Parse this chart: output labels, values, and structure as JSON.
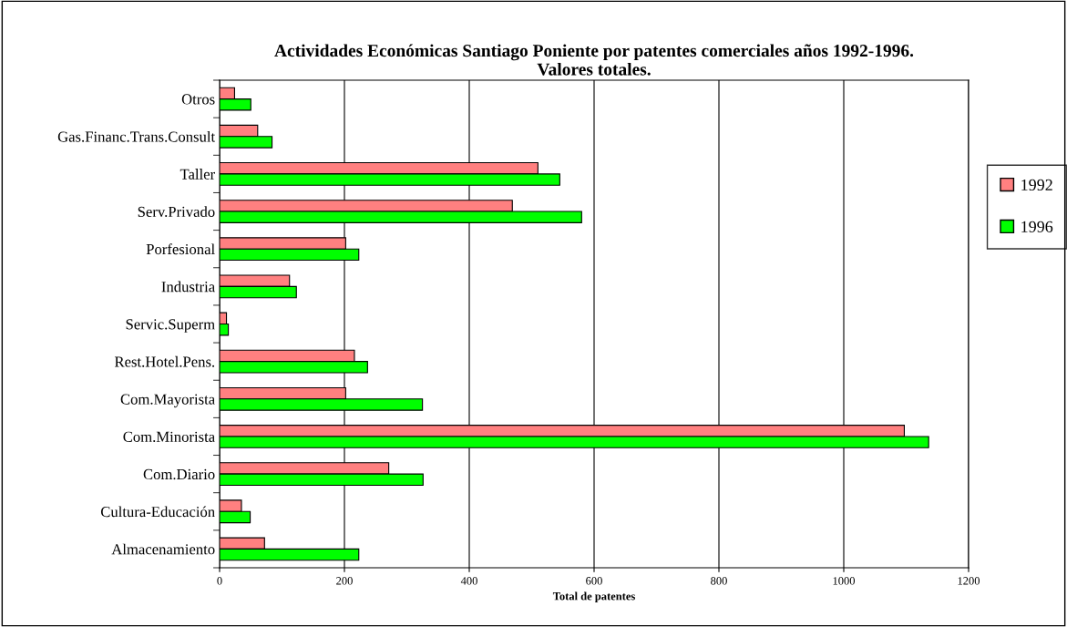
{
  "chart_data": {
    "type": "bar",
    "orientation": "horizontal",
    "title": "Actividades Económicas Santiago Poniente por patentes comerciales años 1992-1996.\nValores totales.",
    "xlabel": "Total de patentes",
    "categories": [
      "Otros",
      "Gas.Financ.Trans.Consult",
      "Taller",
      "Serv.Privado",
      "Porfesional",
      "Industria",
      "Servic.Superm",
      "Rest.Hotel.Pens.",
      "Com.Mayorista",
      "Com.Minorista",
      "Com.Diario",
      "Cultura-Educación",
      "Almacenamiento"
    ],
    "series": [
      {
        "name": "1992",
        "color": "#ff8080",
        "values": [
          24,
          61,
          510,
          469,
          202,
          112,
          11,
          216,
          202,
          1097,
          271,
          35,
          72
        ]
      },
      {
        "name": "1996",
        "color": "#00ff00",
        "values": [
          50,
          84,
          545,
          580,
          223,
          123,
          14,
          237,
          325,
          1136,
          326,
          49,
          223
        ]
      }
    ],
    "xlim": [
      0,
      1200
    ],
    "xticks": [
      0,
      200,
      400,
      600,
      800,
      1000,
      1200
    ],
    "grid": "x",
    "legend": "right"
  }
}
